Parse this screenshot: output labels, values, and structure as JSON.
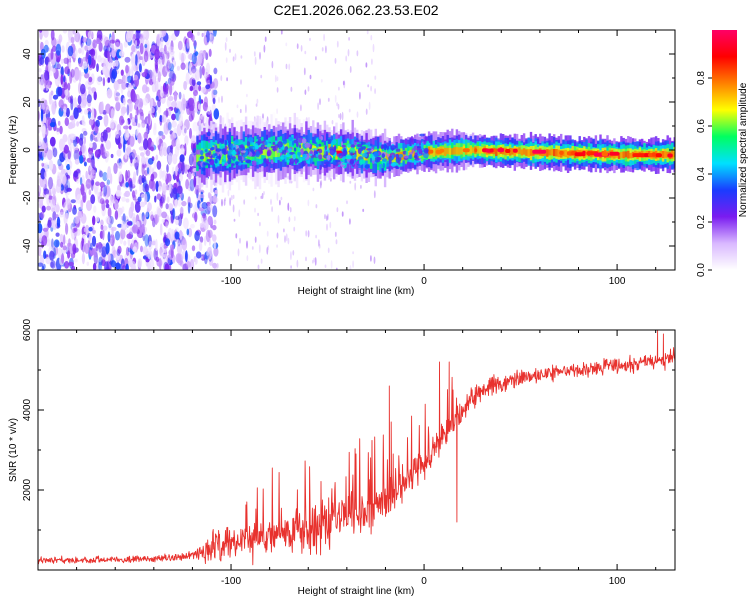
{
  "title": "C2E1.2026.062.23.53.E02",
  "colors": {
    "snr_line": "#e8322e",
    "scatter_base": "#7a1cf0"
  },
  "chart_data": [
    {
      "type": "heatmap",
      "name": "spectrogram",
      "xlabel": "Height of straight line (km)",
      "ylabel": "Frequency (Hz)",
      "xlim": [
        -200,
        130
      ],
      "ylim": [
        -50,
        50
      ],
      "xticks": [
        -100,
        0,
        100
      ],
      "xtick_labels": [
        "-100",
        "0",
        "100"
      ],
      "yticks": [
        -40,
        -20,
        0,
        20,
        40
      ],
      "ytick_labels": [
        "-40",
        "-20",
        "0",
        "20",
        "40"
      ],
      "noise_region_x": [
        -200,
        -115
      ],
      "signal_onset_x": -118,
      "signal_center_freq_hz": [
        {
          "x": -115,
          "f": -2
        },
        {
          "x": -80,
          "f": 0
        },
        {
          "x": -40,
          "f": -1
        },
        {
          "x": -20,
          "f": -3
        },
        {
          "x": 0,
          "f": -1
        },
        {
          "x": 20,
          "f": 0
        },
        {
          "x": 60,
          "f": -1
        },
        {
          "x": 100,
          "f": -2
        },
        {
          "x": 130,
          "f": -2
        }
      ],
      "colorbar": {
        "label": "Normalized spectral amplitude",
        "range": [
          0,
          1
        ],
        "ticks": [
          0,
          0.2,
          0.4,
          0.6,
          0.8
        ],
        "tick_labels": [
          "0.0",
          "0.2",
          "0.4",
          "0.6",
          "0.8"
        ],
        "colormap": [
          "#ffffff",
          "#d9b8ff",
          "#7a1cf0",
          "#1a3cff",
          "#00e0ff",
          "#00ff60",
          "#ffff00",
          "#ff8000",
          "#ff0000",
          "#ff0066"
        ]
      }
    },
    {
      "type": "line",
      "name": "snr",
      "xlabel": "Height of straight line (km)",
      "ylabel": "SNR (10 * v/v)",
      "xlim": [
        -200,
        130
      ],
      "ylim": [
        0,
        6000
      ],
      "xticks": [
        -100,
        0,
        100
      ],
      "xtick_labels": [
        "-100",
        "0",
        "100"
      ],
      "yticks": [
        2000,
        4000,
        6000
      ],
      "ytick_labels": [
        "2000",
        "4000",
        "6000"
      ],
      "series": [
        {
          "name": "SNR",
          "points": [
            {
              "x": -200,
              "y": 250
            },
            {
              "x": -180,
              "y": 250
            },
            {
              "x": -160,
              "y": 260
            },
            {
              "x": -140,
              "y": 280
            },
            {
              "x": -125,
              "y": 320
            },
            {
              "x": -115,
              "y": 450
            },
            {
              "x": -100,
              "y": 700
            },
            {
              "x": -80,
              "y": 850
            },
            {
              "x": -60,
              "y": 1000
            },
            {
              "x": -40,
              "y": 1250
            },
            {
              "x": -25,
              "y": 1500
            },
            {
              "x": -15,
              "y": 1900
            },
            {
              "x": -5,
              "y": 2400
            },
            {
              "x": 5,
              "y": 3000
            },
            {
              "x": 15,
              "y": 3700
            },
            {
              "x": 25,
              "y": 4300
            },
            {
              "x": 35,
              "y": 4600
            },
            {
              "x": 50,
              "y": 4800
            },
            {
              "x": 70,
              "y": 4950
            },
            {
              "x": 90,
              "y": 5050
            },
            {
              "x": 110,
              "y": 5150
            },
            {
              "x": 130,
              "y": 5300
            }
          ],
          "noise_amplitude": [
            {
              "x": -200,
              "a": 150
            },
            {
              "x": -120,
              "a": 150
            },
            {
              "x": -110,
              "a": 700
            },
            {
              "x": -60,
              "a": 900
            },
            {
              "x": -30,
              "a": 1000
            },
            {
              "x": 0,
              "a": 700
            },
            {
              "x": 25,
              "a": 500
            },
            {
              "x": 60,
              "a": 300
            },
            {
              "x": 130,
              "a": 350
            }
          ],
          "spikes": [
            {
              "x": -18,
              "y": 4600
            },
            {
              "x": -17,
              "y": 3700
            },
            {
              "x": -16,
              "y": 2900
            },
            {
              "x": 8,
              "y": 5200
            },
            {
              "x": 13,
              "y": 5200
            },
            {
              "x": 15,
              "y": 4500
            },
            {
              "x": 17,
              "y": 1200
            },
            {
              "x": 121,
              "y": 6000
            },
            {
              "x": 124,
              "y": 5900
            }
          ]
        }
      ]
    }
  ]
}
